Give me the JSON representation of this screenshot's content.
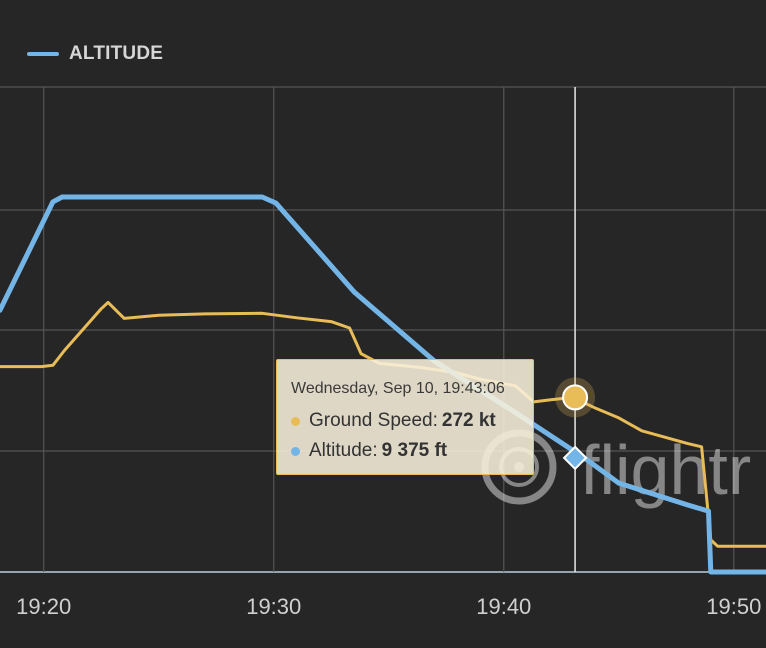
{
  "legend": {
    "label": "ALTITUDE"
  },
  "watermark": {
    "text": "flightr"
  },
  "tooltip": {
    "date": "Wednesday, Sep 10, 19:43:06",
    "speed_label": "Ground Speed:",
    "speed_value": "272 kt",
    "altitude_label": "Altitude:",
    "altitude_value": "9 375 ft"
  },
  "colors": {
    "altitude": "#73b5e6",
    "ground_speed": "#e8bd58",
    "background": "#262626",
    "grid": "#555555"
  },
  "chart_data": {
    "type": "line",
    "x_ticks": [
      "19:20",
      "19:30",
      "19:40",
      "19:50"
    ],
    "xlim_minutes": [
      18.1,
      51.4
    ],
    "grid": true,
    "legend_position": "top-left",
    "crosshair_time": "19:43:06",
    "series": [
      {
        "name": "ALTITUDE",
        "x": [
          18.1,
          20.4,
          20.8,
          29.5,
          30.1,
          33.5,
          37.0,
          40.5,
          43.5,
          45.0,
          48.0,
          48.9,
          49.0,
          51.4
        ],
        "y": [
          21500,
          30400,
          30800,
          30800,
          30300,
          23000,
          17300,
          13100,
          9375,
          7300,
          5500,
          5000,
          0,
          0
        ]
      },
      {
        "name": "Ground Speed",
        "x": [
          18.1,
          19.9,
          20.4,
          20.9,
          22.5,
          22.8,
          23.5,
          25.0,
          27.0,
          29.5,
          31.0,
          32.5,
          33.3,
          33.8,
          34.6,
          36.5,
          38.0,
          39.0,
          40.5,
          41.3,
          42.0,
          43.0,
          44.0,
          45.0,
          46.0,
          47.0,
          48.0,
          48.6,
          49.0,
          49.3,
          51.4
        ],
        "y": [
          320,
          320,
          322,
          345,
          410,
          420,
          395,
          400,
          402,
          403,
          396,
          390,
          380,
          340,
          325,
          318,
          310,
          300,
          290,
          265,
          268,
          272,
          255,
          240,
          220,
          210,
          200,
          195,
          50,
          40,
          40
        ]
      }
    ]
  }
}
